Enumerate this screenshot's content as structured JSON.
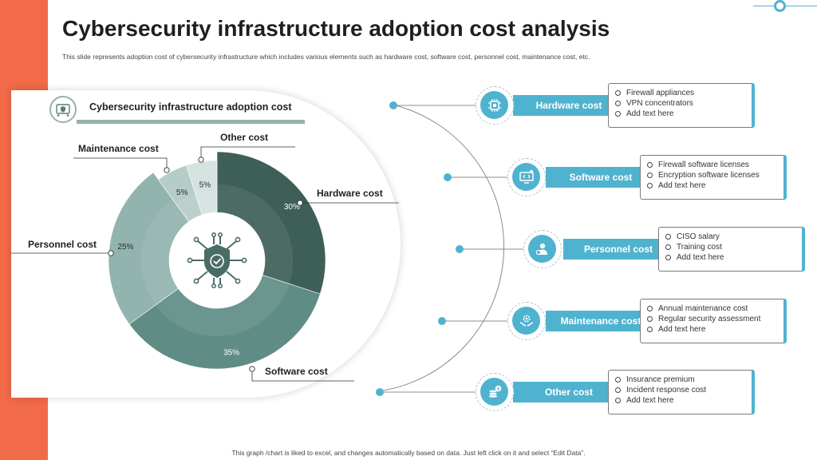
{
  "slide": {
    "title": "Cybersecurity infrastructure adoption cost analysis",
    "subtitle": "This slide represents adoption cost of cybersecurity infrastructure which includes various elements such as hardware cost, software cost, personnel cost, maintenance cost, etc.",
    "footer": "This graph /chart is liked to excel, and changes automatically based on data. Just left click on it and select “Edit Data”."
  },
  "chart_header": {
    "title": "Cybersecurity infrastructure adoption cost",
    "icon": "shield-network-icon"
  },
  "chart_data": {
    "type": "pie",
    "title": "Cybersecurity infrastructure adoption cost",
    "categories": [
      "Hardware cost",
      "Software cost",
      "Personnel cost",
      "Maintenance cost",
      "Other cost"
    ],
    "values": [
      30,
      35,
      25,
      5,
      5
    ],
    "value_labels": [
      "30%",
      "35%",
      "25%",
      "5%",
      "5%"
    ],
    "colors": [
      "#3d5f58",
      "#5f8d86",
      "#93b3ae",
      "#b6ccc8",
      "#d4e2e0"
    ],
    "label_colors": [
      "#ffffff",
      "#ffffff",
      "#2b2b2b",
      "#2b2b2b",
      "#2b2b2b"
    ],
    "center_icon": "shield-check-circuit-icon"
  },
  "cost_items": [
    {
      "label": "Hardware cost",
      "icon": "cpu-chip-icon",
      "details": [
        "Firewall appliances",
        "VPN concentrators",
        "Add text here"
      ]
    },
    {
      "label": "Software cost",
      "icon": "code-monitor-icon",
      "details": [
        "Firewall software licenses",
        "Encryption software licenses",
        "Add text here"
      ]
    },
    {
      "label": "Personnel cost",
      "icon": "person-badge-icon",
      "details": [
        "CISO salary",
        "Training cost",
        "Add text here"
      ]
    },
    {
      "label": "Maintenance cost",
      "icon": "gear-hands-icon",
      "details": [
        "Annual maintenance cost",
        "Regular security assessment",
        "Add text here"
      ]
    },
    {
      "label": "Other cost",
      "icon": "coins-dollar-icon",
      "details": [
        "Insurance premium",
        "Incident response cost",
        "Add text here"
      ]
    }
  ],
  "colors": {
    "accent": "#4fb3cf",
    "brand_bar": "#f26a47",
    "chart_dark": "#3d5f58"
  }
}
